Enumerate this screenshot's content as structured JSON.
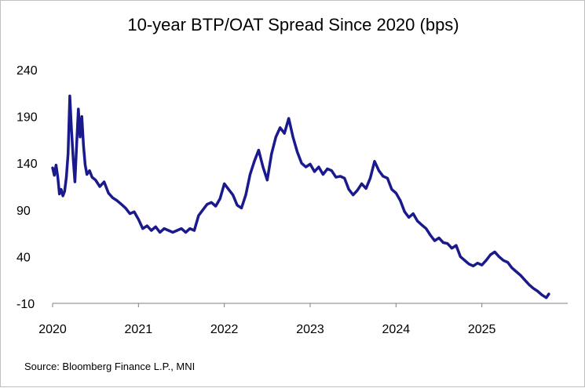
{
  "chart_data": {
    "type": "line",
    "title": "10-year BTP/OAT Spread Since 2020 (bps)",
    "xlabel": "",
    "ylabel": "",
    "ylim": [
      -10,
      240
    ],
    "yticks": [
      240,
      190,
      140,
      90,
      40,
      -10
    ],
    "xlim": [
      2020.0,
      2026.0
    ],
    "xticks": [
      "2020",
      "2021",
      "2022",
      "2023",
      "2024",
      "2025"
    ],
    "xtick_values": [
      2020,
      2021,
      2022,
      2023,
      2024,
      2025
    ],
    "grid": false,
    "series": [
      {
        "name": "10-year BTP/OAT Spread",
        "color": "#1a1a8c",
        "x": [
          2020.0,
          2020.02,
          2020.04,
          2020.06,
          2020.08,
          2020.1,
          2020.12,
          2020.14,
          2020.16,
          2020.18,
          2020.2,
          2020.22,
          2020.24,
          2020.26,
          2020.28,
          2020.3,
          2020.32,
          2020.34,
          2020.36,
          2020.38,
          2020.4,
          2020.43,
          2020.46,
          2020.5,
          2020.55,
          2020.6,
          2020.65,
          2020.7,
          2020.75,
          2020.8,
          2020.85,
          2020.9,
          2020.95,
          2021.0,
          2021.05,
          2021.1,
          2021.15,
          2021.2,
          2021.25,
          2021.3,
          2021.35,
          2021.4,
          2021.45,
          2021.5,
          2021.55,
          2021.6,
          2021.65,
          2021.7,
          2021.75,
          2021.8,
          2021.85,
          2021.9,
          2021.95,
          2022.0,
          2022.05,
          2022.1,
          2022.15,
          2022.2,
          2022.25,
          2022.3,
          2022.35,
          2022.4,
          2022.45,
          2022.5,
          2022.55,
          2022.6,
          2022.65,
          2022.7,
          2022.75,
          2022.8,
          2022.85,
          2022.9,
          2022.95,
          2023.0,
          2023.05,
          2023.1,
          2023.15,
          2023.2,
          2023.25,
          2023.3,
          2023.35,
          2023.4,
          2023.45,
          2023.5,
          2023.55,
          2023.6,
          2023.65,
          2023.7,
          2023.75,
          2023.8,
          2023.85,
          2023.9,
          2023.95,
          2024.0,
          2024.05,
          2024.1,
          2024.15,
          2024.2,
          2024.25,
          2024.3,
          2024.35,
          2024.4,
          2024.45,
          2024.5,
          2024.55,
          2024.6,
          2024.65,
          2024.7,
          2024.75,
          2024.8,
          2024.85,
          2024.9,
          2024.95,
          2025.0,
          2025.05,
          2025.1,
          2025.15,
          2025.2,
          2025.25,
          2025.3,
          2025.35,
          2025.4,
          2025.45,
          2025.5,
          2025.55,
          2025.6,
          2025.65,
          2025.7,
          2025.75,
          2025.78
        ],
        "values": [
          135,
          127,
          138,
          125,
          107,
          112,
          105,
          110,
          125,
          150,
          212,
          175,
          145,
          120,
          160,
          198,
          168,
          190,
          158,
          138,
          128,
          132,
          125,
          122,
          115,
          120,
          108,
          103,
          100,
          96,
          92,
          86,
          88,
          80,
          70,
          73,
          68,
          72,
          66,
          70,
          68,
          66,
          68,
          70,
          66,
          70,
          68,
          84,
          90,
          96,
          98,
          94,
          102,
          118,
          112,
          106,
          95,
          92,
          106,
          128,
          142,
          154,
          136,
          122,
          150,
          168,
          178,
          172,
          188,
          168,
          152,
          140,
          136,
          139,
          131,
          136,
          128,
          134,
          132,
          125,
          126,
          124,
          112,
          106,
          111,
          118,
          113,
          124,
          142,
          132,
          126,
          124,
          112,
          108,
          100,
          88,
          82,
          86,
          78,
          74,
          70,
          63,
          57,
          60,
          55,
          54,
          49,
          52,
          40,
          36,
          32,
          30,
          33,
          31,
          36,
          42,
          45,
          40,
          36,
          34,
          28,
          24,
          20,
          15,
          10,
          6,
          3,
          -1,
          -4,
          0
        ]
      }
    ]
  },
  "source": "Source: Bloomberg Finance L.P., MNI"
}
